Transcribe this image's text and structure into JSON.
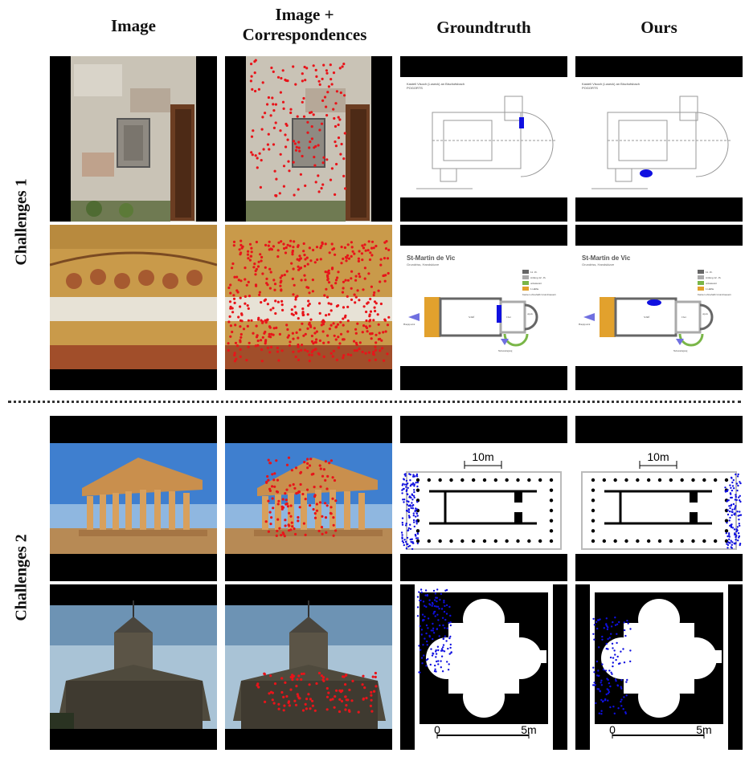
{
  "columns": {
    "image": "Image",
    "image_corr_line1": "Image +",
    "image_corr_line2": "Correspondences",
    "groundtruth": "Groundtruth",
    "ours": "Ours"
  },
  "rows": {
    "challenges1": "Challenges 1",
    "challenges2": "Challenges 2"
  },
  "plans": {
    "plan1_header_line1": "Kastell Visoch (Luseck) an Bischofsbach",
    "plan1_header_line2": "POGORTS",
    "plan2_title": "St-Martin de Vic",
    "plan2_subtitle": "Grundriss, Handskizze",
    "plan2_legend": [
      "11. Jh.",
      "Anfang 12. Jh.",
      "unbekannt",
      "1.Hälfte",
      "Kanten ohnehalb Grundmauern"
    ],
    "plan2_labels": [
      "Hauptportal",
      "Schiff",
      "Chor",
      "Apsis",
      "Nebeneingang",
      "Seitenkapelle"
    ],
    "scale_10m": "10m",
    "scale_0": "0",
    "scale_5m": "5m"
  },
  "colors": {
    "correspondence": "#e8141a",
    "localization": "#1010e0"
  }
}
